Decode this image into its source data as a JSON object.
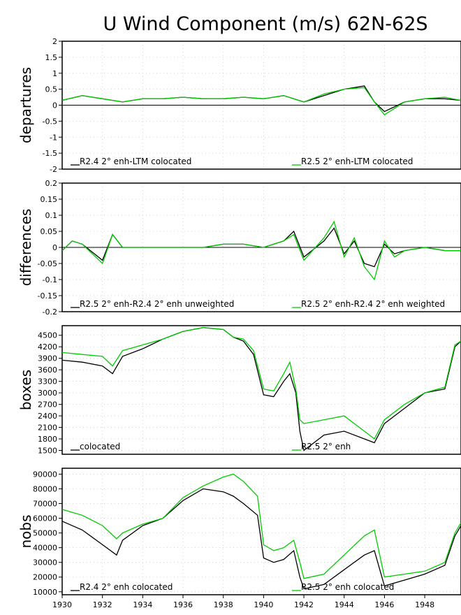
{
  "chart_data": {
    "title": "U Wind Component (m/s) 62N-62S",
    "x_ticks": [
      "1930",
      "1932",
      "1934",
      "1936",
      "1938",
      "1940",
      "1942",
      "1944",
      "1946",
      "1948"
    ],
    "xlim": [
      1930,
      1949.8
    ],
    "colors": {
      "black": "#000000",
      "green": "#00cc00"
    },
    "panels": [
      {
        "type": "line",
        "ylabel": "departures",
        "ylim": [
          -2,
          2
        ],
        "y_ticks": [
          "2",
          "1.5",
          "1",
          "0.5",
          "0",
          "-0.5",
          "-1",
          "-1.5",
          "-2"
        ],
        "y_tick_values": [
          2,
          1.5,
          1,
          0.5,
          0,
          -0.5,
          -1,
          -1.5,
          -2
        ],
        "zero_line": true,
        "series": [
          {
            "name": "R2.4 2° enh-LTM colocated",
            "color": "black",
            "x": [
              1930,
              1931,
              1932,
              1933,
              1934,
              1935,
              1936,
              1937,
              1938,
              1939,
              1940,
              1941,
              1942,
              1943,
              1944,
              1945,
              1945.5,
              1946,
              1947,
              1948,
              1949,
              1949.8
            ],
            "y": [
              0.15,
              0.3,
              0.2,
              0.1,
              0.2,
              0.2,
              0.25,
              0.2,
              0.2,
              0.25,
              0.2,
              0.3,
              0.1,
              0.3,
              0.5,
              0.6,
              0.1,
              -0.2,
              0.1,
              0.2,
              0.2,
              0.15
            ]
          },
          {
            "name": "R2.5 2° enh-LTM colocated",
            "color": "green",
            "x": [
              1930,
              1931,
              1932,
              1933,
              1934,
              1935,
              1936,
              1937,
              1938,
              1939,
              1940,
              1941,
              1942,
              1943,
              1944,
              1945,
              1945.5,
              1946,
              1947,
              1948,
              1949,
              1949.8
            ],
            "y": [
              0.15,
              0.3,
              0.2,
              0.1,
              0.2,
              0.2,
              0.25,
              0.2,
              0.2,
              0.25,
              0.2,
              0.3,
              0.1,
              0.35,
              0.5,
              0.55,
              0.1,
              -0.3,
              0.1,
              0.2,
              0.25,
              0.15
            ]
          }
        ]
      },
      {
        "type": "line",
        "ylabel": "differences",
        "ylim": [
          -0.2,
          0.2
        ],
        "y_ticks": [
          "0.2",
          "0.15",
          "0.1",
          "0.05",
          "0",
          "-0.05",
          "-0.1",
          "-0.15",
          "-0.2"
        ],
        "y_tick_values": [
          0.2,
          0.15,
          0.1,
          0.05,
          0,
          -0.05,
          -0.1,
          -0.15,
          -0.2
        ],
        "zero_line": true,
        "series": [
          {
            "name": "R2.5 2° enh-R2.4 2° enh unweighted",
            "color": "black",
            "x": [
              1930,
              1930.5,
              1931,
              1932,
              1932.5,
              1933,
              1934,
              1935,
              1936,
              1937,
              1938,
              1939,
              1940,
              1941,
              1941.5,
              1942,
              1943,
              1943.5,
              1944,
              1944.5,
              1945,
              1945.5,
              1946,
              1946.5,
              1947,
              1948,
              1949,
              1949.8
            ],
            "y": [
              -0.01,
              0.02,
              0.01,
              -0.04,
              0.04,
              0,
              0,
              0,
              0,
              0,
              0.01,
              0.01,
              0,
              0.02,
              0.05,
              -0.03,
              0.02,
              0.06,
              -0.02,
              0.02,
              -0.05,
              -0.06,
              0.01,
              -0.02,
              -0.01,
              0,
              -0.01,
              -0.01
            ]
          },
          {
            "name": "R2.5 2° enh-R2.4 2° enh weighted",
            "color": "green",
            "x": [
              1930,
              1930.5,
              1931,
              1932,
              1932.5,
              1933,
              1934,
              1935,
              1936,
              1937,
              1938,
              1939,
              1940,
              1941,
              1941.5,
              1942,
              1943,
              1943.5,
              1944,
              1944.5,
              1945,
              1945.5,
              1946,
              1946.5,
              1947,
              1948,
              1949,
              1949.8
            ],
            "y": [
              -0.01,
              0.02,
              0.01,
              -0.05,
              0.04,
              0,
              0,
              0,
              0,
              0,
              0.01,
              0.01,
              0,
              0.02,
              0.04,
              -0.04,
              0.03,
              0.08,
              -0.03,
              0.03,
              -0.06,
              -0.1,
              0.02,
              -0.03,
              -0.01,
              0,
              -0.01,
              -0.01
            ]
          }
        ]
      },
      {
        "type": "line",
        "ylabel": "boxes",
        "ylim": [
          1400,
          4750
        ],
        "y_ticks": [
          "4500",
          "4200",
          "3900",
          "3600",
          "3300",
          "3000",
          "2700",
          "2400",
          "2100",
          "1800",
          "1500"
        ],
        "y_tick_values": [
          4500,
          4200,
          3900,
          3600,
          3300,
          3000,
          2700,
          2400,
          2100,
          1800,
          1500
        ],
        "zero_line": false,
        "series": [
          {
            "name": "colocated",
            "color": "black",
            "x": [
              1930,
              1931,
              1932,
              1932.5,
              1933,
              1934,
              1935,
              1936,
              1937,
              1938,
              1938.5,
              1939,
              1939.5,
              1940,
              1940.5,
              1941,
              1941.3,
              1941.6,
              1941.8,
              1942,
              1943,
              1944,
              1945,
              1945.5,
              1946,
              1947,
              1948,
              1949,
              1949.5,
              1949.8
            ],
            "y": [
              3850,
              3800,
              3700,
              3500,
              3950,
              4150,
              4400,
              4600,
              4700,
              4650,
              4450,
              4350,
              4000,
              2950,
              2900,
              3300,
              3500,
              3000,
              2000,
              1500,
              1900,
              2000,
              1800,
              1700,
              2200,
              2600,
              3000,
              3100,
              4200,
              4350
            ]
          },
          {
            "name": "R2.5 2° enh",
            "color": "green",
            "x": [
              1930,
              1931,
              1932,
              1932.5,
              1933,
              1934,
              1935,
              1936,
              1937,
              1938,
              1938.5,
              1939,
              1939.5,
              1940,
              1940.5,
              1941,
              1941.3,
              1941.6,
              1941.8,
              1942,
              1943,
              1944,
              1945,
              1945.5,
              1946,
              1947,
              1948,
              1949,
              1949.5,
              1949.8
            ],
            "y": [
              4050,
              4000,
              3950,
              3700,
              4100,
              4250,
              4400,
              4600,
              4700,
              4650,
              4450,
              4400,
              4100,
              3100,
              3050,
              3500,
              3800,
              3100,
              2300,
              2200,
              2300,
              2400,
              2000,
              1800,
              2300,
              2700,
              3000,
              3150,
              4250,
              4350
            ]
          }
        ]
      },
      {
        "type": "line",
        "ylabel": "nobs",
        "ylim": [
          8000,
          94000
        ],
        "y_ticks": [
          "90000",
          "80000",
          "70000",
          "60000",
          "50000",
          "40000",
          "30000",
          "20000",
          "10000"
        ],
        "y_tick_values": [
          90000,
          80000,
          70000,
          60000,
          50000,
          40000,
          30000,
          20000,
          10000
        ],
        "zero_line": false,
        "series": [
          {
            "name": "R2.4 2° enh colocated",
            "color": "black",
            "x": [
              1930,
              1931,
              1932,
              1932.7,
              1933,
              1934,
              1935,
              1936,
              1937,
              1938,
              1938.5,
              1939,
              1939.7,
              1940,
              1940.5,
              1941,
              1941.5,
              1941.8,
              1942,
              1943,
              1944,
              1945,
              1945.5,
              1946,
              1947,
              1948,
              1949,
              1949.5,
              1949.8
            ],
            "y": [
              58000,
              52000,
              42000,
              35000,
              45000,
              55000,
              60000,
              72000,
              80000,
              78000,
              75000,
              70000,
              62000,
              33000,
              30000,
              32000,
              38000,
              20000,
              12000,
              15000,
              25000,
              35000,
              38000,
              14000,
              18000,
              22000,
              28000,
              48000,
              55000
            ]
          },
          {
            "name": "R2.5 2° enh colocated",
            "color": "green",
            "x": [
              1930,
              1931,
              1932,
              1932.7,
              1933,
              1934,
              1935,
              1936,
              1937,
              1938,
              1938.5,
              1939,
              1939.7,
              1940,
              1940.5,
              1941,
              1941.5,
              1941.8,
              1942,
              1943,
              1944,
              1945,
              1945.5,
              1946,
              1947,
              1948,
              1949,
              1949.5,
              1949.8
            ],
            "y": [
              66000,
              62000,
              55000,
              46000,
              50000,
              56000,
              60000,
              74000,
              82000,
              88000,
              90000,
              85000,
              75000,
              42000,
              38000,
              40000,
              45000,
              30000,
              19000,
              22000,
              35000,
              48000,
              52000,
              20000,
              22000,
              24000,
              30000,
              50000,
              57000
            ]
          }
        ]
      }
    ]
  }
}
